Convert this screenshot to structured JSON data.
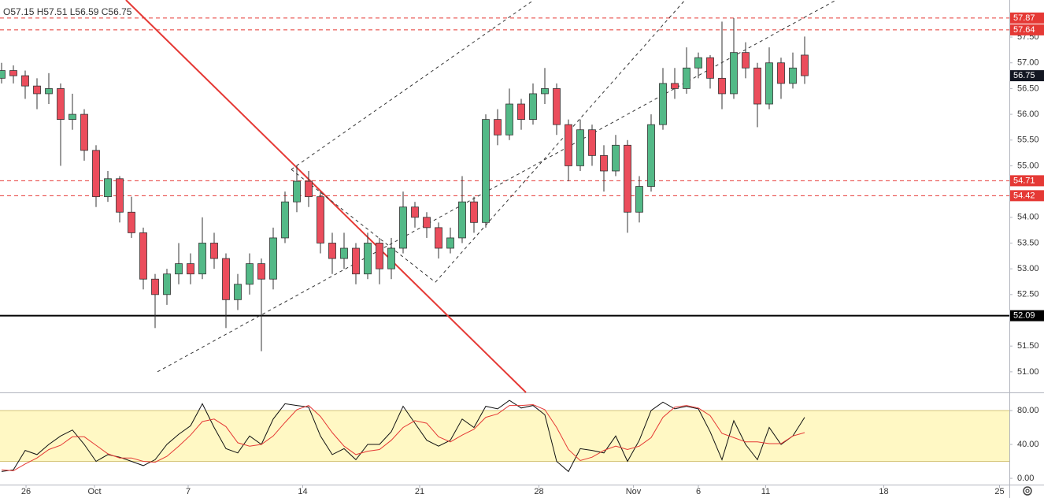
{
  "chart_data": [
    {
      "type": "candlestick",
      "legend": "O57.15  H57.51  L56.59  C56.75",
      "up_color": "#53b987",
      "down_color": "#eb4d5c",
      "grid": false,
      "open": [
        56.7,
        56.85,
        56.75,
        56.55,
        56.4,
        56.5,
        55.9,
        56.0,
        55.3,
        54.4,
        54.75,
        54.1,
        53.7,
        52.8,
        52.5,
        52.9,
        53.1,
        52.9,
        53.5,
        53.2,
        52.4,
        52.7,
        53.1,
        52.8,
        53.6,
        54.3,
        54.7,
        54.4,
        53.5,
        53.2,
        53.4,
        52.9,
        53.5,
        53.0,
        53.4,
        54.2,
        54.0,
        53.8,
        53.4,
        53.6,
        54.3,
        53.9,
        55.9,
        55.6,
        56.2,
        55.9,
        56.4,
        56.5,
        55.8,
        55.0,
        55.7,
        55.2,
        54.9,
        55.4,
        54.1,
        54.6,
        55.8,
        56.6,
        56.5,
        56.9,
        57.1,
        56.7,
        56.4,
        57.2,
        56.9,
        56.2,
        57.0,
        56.6,
        57.15
      ],
      "high": [
        57.0,
        56.95,
        56.85,
        56.7,
        56.8,
        56.6,
        56.4,
        56.1,
        55.4,
        54.9,
        54.8,
        54.4,
        53.8,
        52.9,
        53.0,
        53.5,
        53.3,
        54.0,
        53.7,
        53.3,
        52.9,
        53.3,
        53.2,
        53.8,
        54.5,
        55.0,
        54.9,
        54.5,
        53.7,
        53.7,
        53.5,
        53.7,
        53.6,
        53.6,
        54.5,
        54.3,
        54.1,
        53.9,
        53.8,
        54.8,
        54.4,
        56.0,
        56.1,
        56.5,
        56.3,
        56.6,
        56.9,
        56.6,
        55.9,
        55.9,
        55.8,
        55.4,
        55.6,
        55.5,
        54.8,
        56.0,
        56.9,
        56.9,
        57.3,
        57.2,
        57.15,
        57.8,
        57.87,
        57.4,
        57.0,
        57.3,
        57.1,
        57.2,
        57.51
      ],
      "low": [
        56.6,
        56.6,
        56.3,
        56.1,
        56.2,
        55.0,
        55.7,
        55.1,
        54.2,
        54.3,
        53.9,
        53.6,
        52.6,
        51.85,
        52.3,
        52.7,
        52.7,
        52.8,
        53.0,
        51.85,
        52.2,
        52.5,
        51.4,
        52.6,
        53.5,
        54.1,
        54.2,
        53.3,
        52.9,
        53.0,
        52.7,
        52.8,
        52.7,
        52.8,
        53.3,
        53.8,
        53.6,
        53.2,
        53.3,
        53.5,
        53.7,
        53.8,
        55.4,
        55.5,
        55.7,
        55.8,
        56.2,
        55.6,
        54.7,
        54.9,
        55.0,
        54.5,
        54.8,
        53.7,
        53.9,
        54.5,
        55.7,
        56.3,
        56.4,
        56.7,
        56.5,
        56.1,
        56.3,
        56.7,
        55.75,
        56.1,
        56.3,
        56.5,
        56.59
      ],
      "close": [
        56.85,
        56.75,
        56.55,
        56.4,
        56.5,
        55.9,
        56.0,
        55.3,
        54.4,
        54.75,
        54.1,
        53.7,
        52.8,
        52.5,
        52.9,
        53.1,
        52.9,
        53.5,
        53.2,
        52.4,
        52.7,
        53.1,
        52.8,
        53.6,
        54.3,
        54.7,
        54.4,
        53.5,
        53.2,
        53.4,
        52.9,
        53.5,
        53.0,
        53.4,
        54.2,
        54.0,
        53.8,
        53.4,
        53.6,
        54.3,
        53.9,
        55.9,
        55.6,
        56.2,
        55.9,
        56.4,
        56.5,
        55.8,
        55.0,
        55.7,
        55.2,
        54.9,
        55.4,
        54.1,
        54.6,
        55.8,
        56.6,
        56.5,
        56.9,
        57.1,
        56.7,
        56.4,
        57.2,
        56.9,
        56.2,
        57.0,
        56.6,
        56.9,
        56.75
      ],
      "xlim": [
        -0.1333,
        85.333
      ],
      "xticks": [
        {
          "value": 2.07,
          "label": "26"
        },
        {
          "value": 7.87,
          "label": "Oct"
        },
        {
          "value": 15.8,
          "label": "7"
        },
        {
          "value": 25.5,
          "label": "14"
        },
        {
          "value": 35.4,
          "label": "21"
        },
        {
          "value": 45.5,
          "label": "28"
        },
        {
          "value": 53.5,
          "label": "Nov"
        },
        {
          "value": 59,
          "label": "6"
        },
        {
          "value": 64.7,
          "label": "11"
        },
        {
          "value": 74.7,
          "label": "18"
        },
        {
          "value": 84.5,
          "label": "25"
        }
      ],
      "ylim": [
        50.6,
        58.22
      ],
      "yticks": [
        {
          "value": 57.5,
          "label": "57.50"
        },
        {
          "value": 57,
          "label": "57.00"
        },
        {
          "value": 56.5,
          "label": "56.50"
        },
        {
          "value": 56,
          "label": "56.00"
        },
        {
          "value": 55.5,
          "label": "55.50"
        },
        {
          "value": 55,
          "label": "55.00"
        },
        {
          "value": 54,
          "label": "54.00"
        },
        {
          "value": 53.5,
          "label": "53.50"
        },
        {
          "value": 53,
          "label": "53.00"
        },
        {
          "value": 52.5,
          "label": "52.50"
        },
        {
          "value": 51.5,
          "label": "51.50"
        },
        {
          "value": 51,
          "label": "51.00"
        }
      ],
      "hlines": [
        {
          "value": 57.87,
          "color": "#e53935",
          "style": "dashed"
        },
        {
          "value": 57.64,
          "color": "#e53935",
          "style": "dashed"
        },
        {
          "value": 54.71,
          "color": "#e53935",
          "style": "dashed"
        },
        {
          "value": 54.42,
          "color": "#e53935",
          "style": "dashed"
        },
        {
          "value": 52.09,
          "color": "#000000",
          "style": "solid"
        }
      ],
      "trendlines": [
        {
          "x": [
            10.53,
            44.4
          ],
          "y": [
            58.22,
            50.6
          ],
          "color": "#e53935",
          "style": "solid"
        },
        {
          "x": [
            13.2,
            70.67
          ],
          "y": [
            51.0,
            58.22
          ],
          "color": "#333333",
          "style": "dashed"
        },
        {
          "x": [
            24.53,
            45.07
          ],
          "y": [
            54.93,
            58.22
          ],
          "color": "#333333",
          "style": "dashed"
        },
        {
          "x": [
            36.73,
            57.87
          ],
          "y": [
            52.74,
            58.22
          ],
          "color": "#333333",
          "style": "dashed"
        },
        {
          "x": [
            24.53,
            36.73
          ],
          "y": [
            54.93,
            52.74
          ],
          "color": "#333333",
          "style": "dashed"
        }
      ]
    },
    {
      "type": "line",
      "band": [
        20,
        80
      ],
      "band_color": "#fff8c4",
      "ylim": [
        -7.4,
        101.4
      ],
      "yticks": [
        {
          "value": 80,
          "label": "80.00"
        },
        {
          "value": 40,
          "label": "40.00"
        },
        {
          "value": 0,
          "label": "0.00"
        }
      ],
      "series": [
        {
          "color": "#111111",
          "values": [
            8,
            10,
            33,
            28,
            40,
            50,
            57,
            40,
            20,
            28,
            25,
            20,
            15,
            22,
            40,
            52,
            62,
            88,
            60,
            35,
            30,
            50,
            40,
            70,
            88,
            86,
            84,
            50,
            28,
            35,
            22,
            40,
            40,
            55,
            85,
            65,
            45,
            38,
            45,
            70,
            60,
            85,
            82,
            92,
            83,
            86,
            75,
            20,
            8,
            35,
            33,
            30,
            50,
            20,
            45,
            80,
            90,
            82,
            85,
            82,
            55,
            22,
            68,
            40,
            22,
            60,
            40,
            50,
            72
          ]
        },
        {
          "color": "#e53935",
          "values": [
            10,
            9,
            17,
            24,
            34,
            39,
            49,
            49,
            39,
            29,
            24,
            24,
            20,
            19,
            26,
            38,
            51,
            67,
            70,
            61,
            42,
            38,
            40,
            50,
            66,
            81,
            86,
            73,
            54,
            38,
            28,
            32,
            34,
            45,
            60,
            68,
            65,
            49,
            43,
            51,
            58,
            72,
            76,
            86,
            86,
            87,
            81,
            60,
            34,
            21,
            25,
            33,
            38,
            34,
            38,
            48,
            72,
            84,
            86,
            83,
            74,
            53,
            48,
            43,
            43,
            41,
            41,
            50,
            54
          ]
        }
      ]
    }
  ]
}
